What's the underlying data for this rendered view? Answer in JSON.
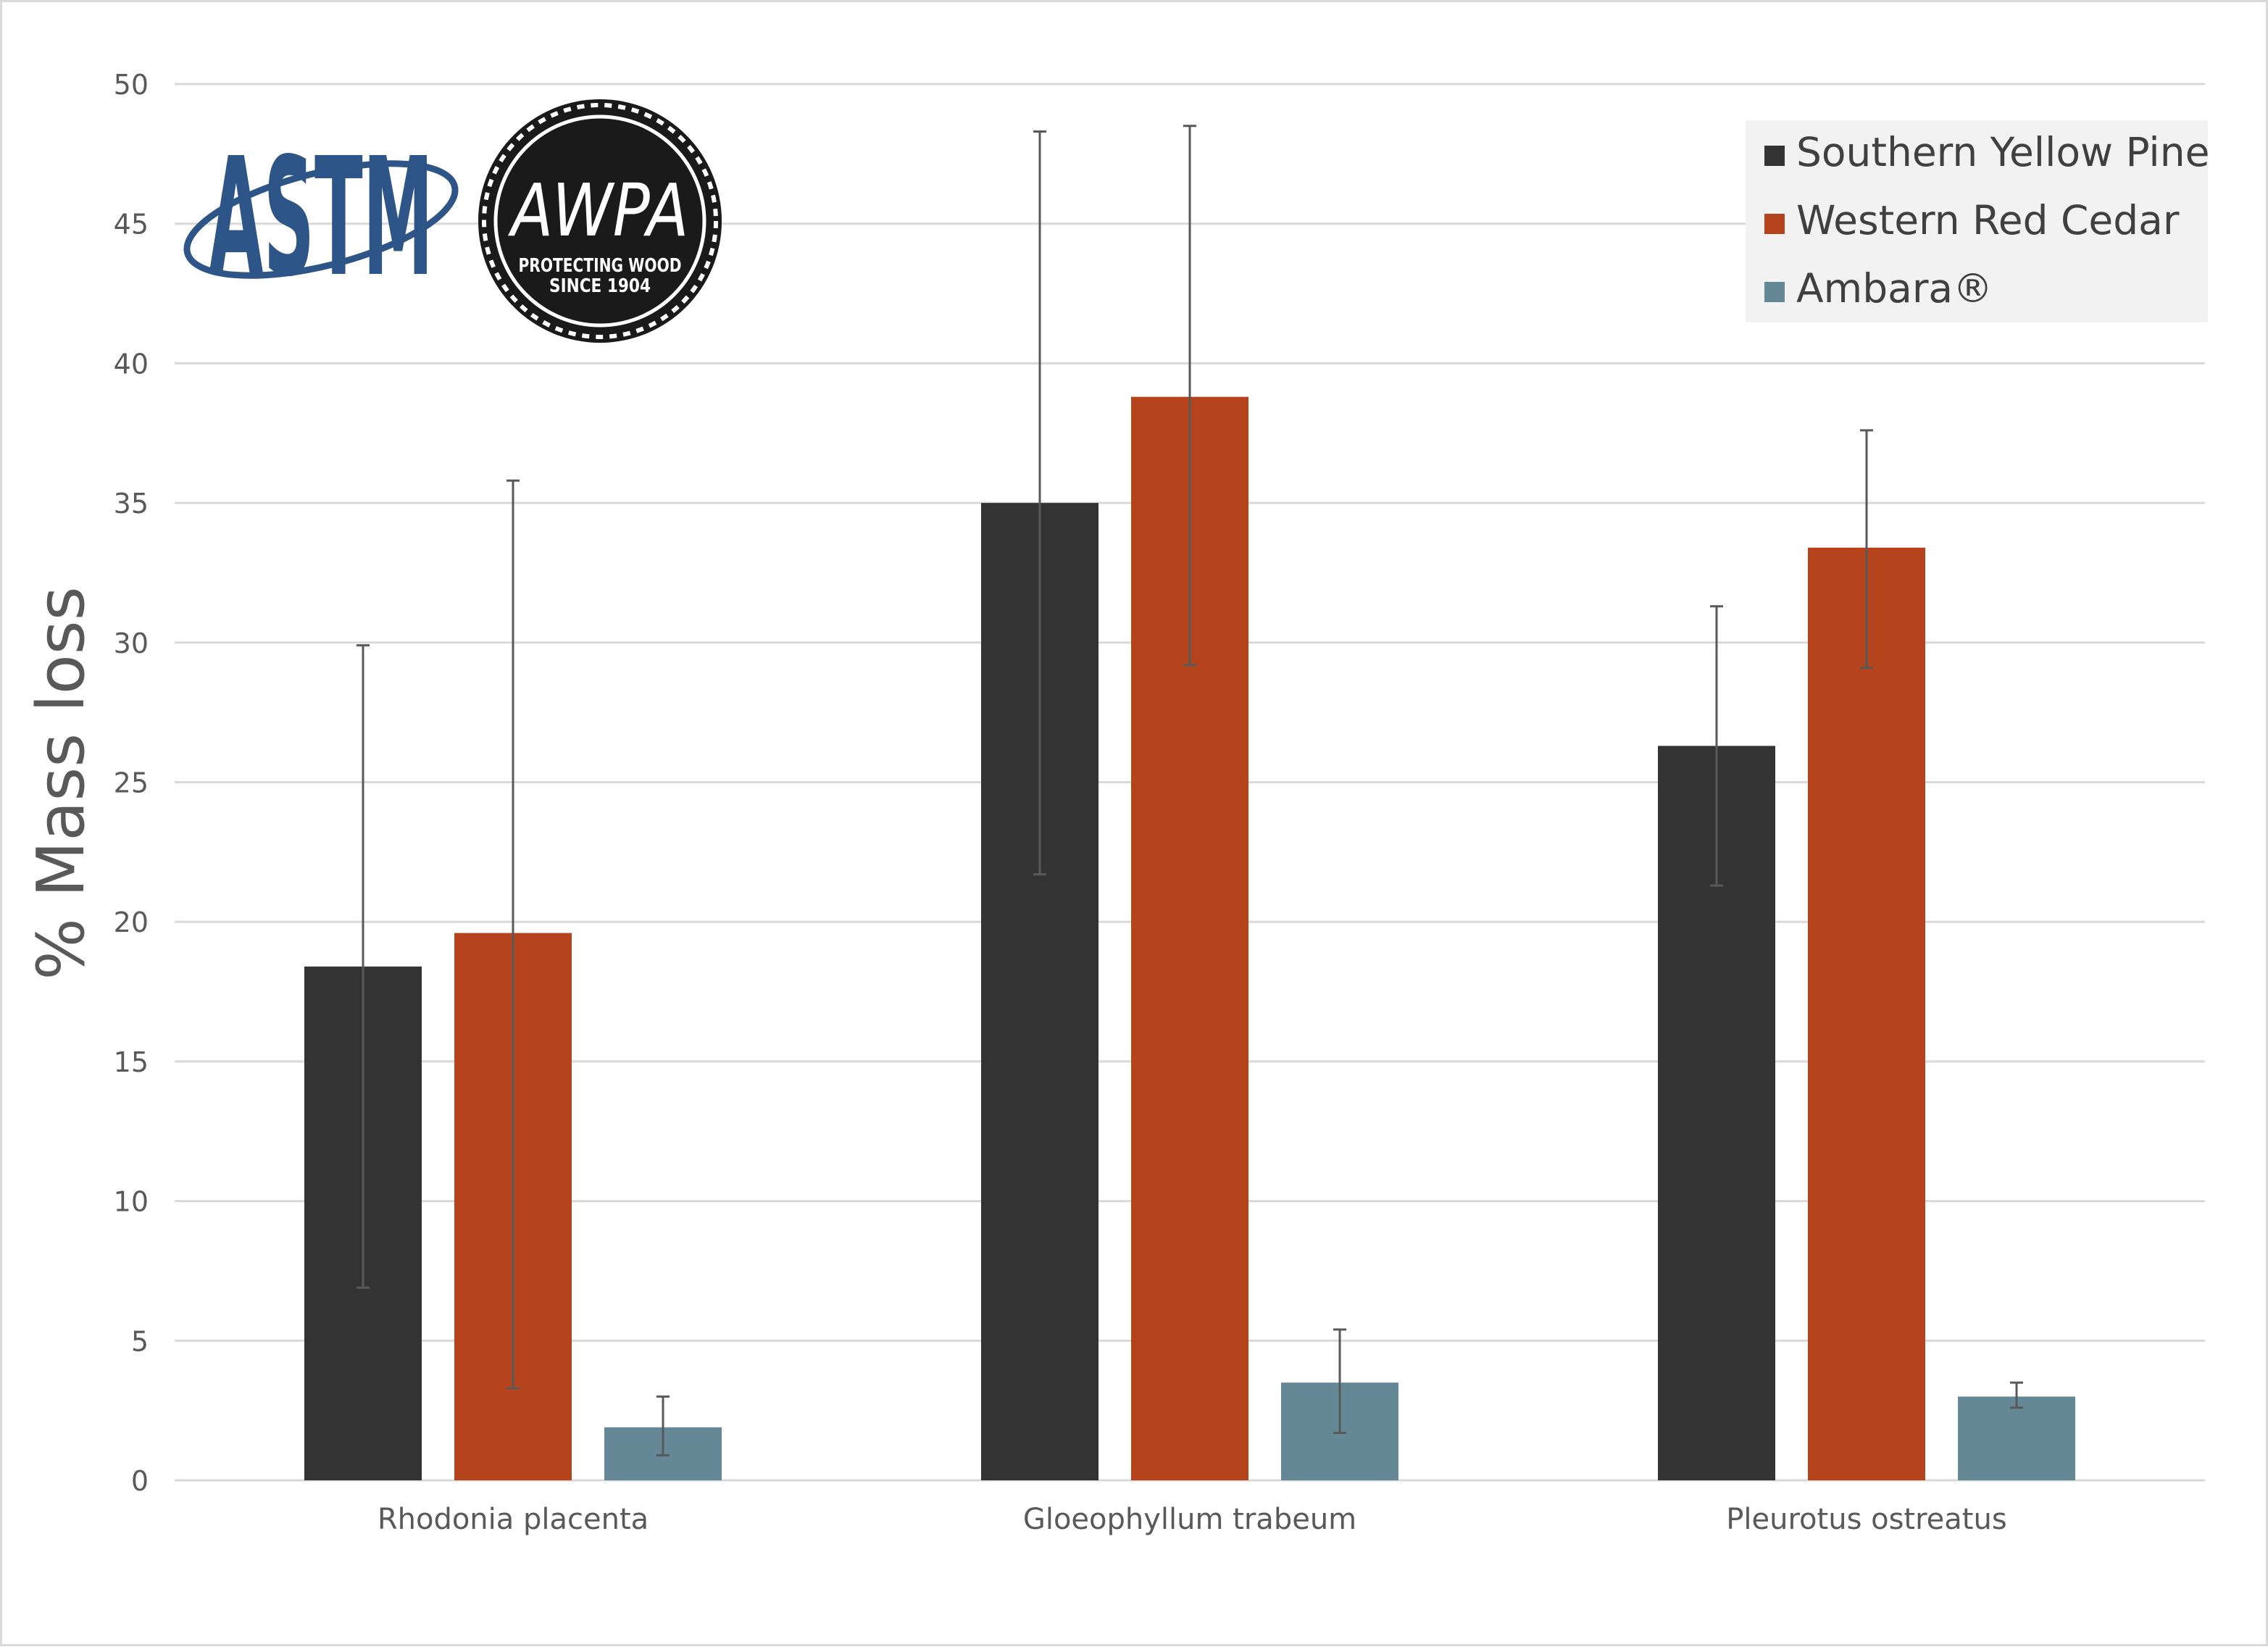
{
  "colors": {
    "southern_yellow_pine": "#333333",
    "western_red_cedar": "#b5441c",
    "ambara": "#658896",
    "gridline": "#d9d9d9",
    "axis_text": "#595959",
    "legend_bg": "#f2f2f2",
    "astm_blue": "#2e5587",
    "awpa_black": "#1a1a1a"
  },
  "logos": {
    "astm": "ASTM",
    "awpa": "AWPA",
    "awpa_tagline_1": "PROTECTING WOOD",
    "awpa_tagline_2": "SINCE 1904"
  },
  "chart_data": {
    "type": "bar",
    "title": "",
    "xlabel": "",
    "ylabel": "% Mass loss",
    "ylim": [
      0,
      50
    ],
    "yticks": [
      0,
      5,
      10,
      15,
      20,
      25,
      30,
      35,
      40,
      45,
      50
    ],
    "grid": true,
    "legend_position": "top-right",
    "categories": [
      "Rhodonia placenta",
      "Gloeophyllum trabeum",
      "Pleurotus ostreatus"
    ],
    "series": [
      {
        "name": "Southern Yellow Pine",
        "color": "#333333",
        "values": [
          18.4,
          35.0,
          26.3
        ],
        "error_low": [
          6.9,
          21.7,
          21.3
        ],
        "error_high": [
          29.9,
          48.3,
          31.3
        ]
      },
      {
        "name": "Western Red Cedar",
        "color": "#b5441c",
        "values": [
          19.6,
          38.8,
          33.4
        ],
        "error_low": [
          3.3,
          29.2,
          29.1
        ],
        "error_high": [
          35.8,
          48.5,
          37.6
        ]
      },
      {
        "name": "Ambara®",
        "color": "#658896",
        "values": [
          1.9,
          3.5,
          3.0
        ],
        "error_low": [
          0.9,
          1.7,
          2.6
        ],
        "error_high": [
          3.0,
          5.4,
          3.5
        ]
      }
    ]
  }
}
